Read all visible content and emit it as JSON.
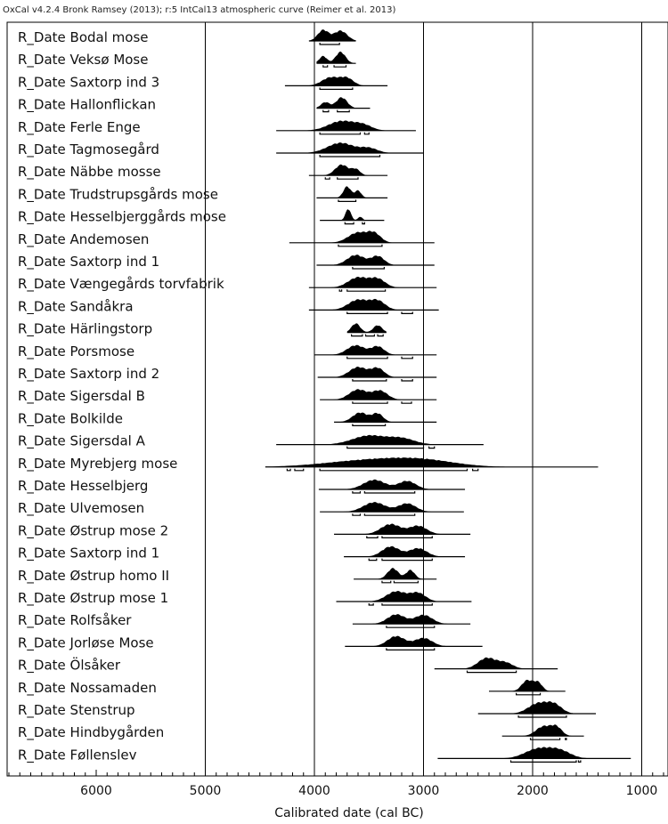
{
  "header": "OxCal v4.2.4 Bronk Ramsey (2013); r:5 IntCal13 atmospheric curve (Reimer et al. 2013)",
  "chart_data": {
    "type": "ridgeline",
    "xlabel": "Calibrated date (cal BC)",
    "xlim": [
      6800,
      770
    ],
    "x_reversed": true,
    "x_ticks": [
      6000,
      5000,
      4000,
      3000,
      2000,
      1000
    ],
    "vertical_gridlines": [
      5000,
      4000,
      3000,
      2000,
      1000
    ],
    "series": [
      {
        "label": "R_Date Bodal mose",
        "peaks": [
          [
            3920,
            0.9,
            50
          ],
          [
            3760,
            0.85,
            60
          ]
        ],
        "range": [
          4050,
          3620
        ],
        "hpd68": [
          [
            3950,
            3770
          ]
        ]
      },
      {
        "label": "R_Date Veksø Mose",
        "peaks": [
          [
            3920,
            0.6,
            35
          ],
          [
            3760,
            0.95,
            45
          ]
        ],
        "range": [
          3980,
          3620
        ],
        "hpd68": [
          [
            3920,
            3880
          ],
          [
            3820,
            3710
          ]
        ]
      },
      {
        "label": "R_Date Saxtorp ind 3",
        "peaks": [
          [
            3850,
            0.7,
            80
          ],
          [
            3700,
            0.6,
            60
          ]
        ],
        "range": [
          4270,
          3330
        ],
        "hpd68": [
          [
            3950,
            3650
          ]
        ]
      },
      {
        "label": "R_Date Hallonflickan",
        "peaks": [
          [
            3900,
            0.5,
            40
          ],
          [
            3750,
            0.9,
            50
          ]
        ],
        "range": [
          3980,
          3490
        ],
        "hpd68": [
          [
            3920,
            3870
          ],
          [
            3790,
            3680
          ]
        ]
      },
      {
        "label": "R_Date Ferle Enge",
        "peaks": [
          [
            3750,
            0.8,
            120
          ],
          [
            3550,
            0.4,
            80
          ]
        ],
        "range": [
          4350,
          3070
        ],
        "hpd68": [
          [
            3950,
            3580
          ],
          [
            3540,
            3500
          ]
        ]
      },
      {
        "label": "R_Date Tagmosegård",
        "peaks": [
          [
            3760,
            0.85,
            120
          ],
          [
            3500,
            0.4,
            80
          ]
        ],
        "range": [
          4350,
          3000
        ],
        "hpd68": [
          [
            3950,
            3400
          ]
        ]
      },
      {
        "label": "R_Date Näbbe mosse",
        "peaks": [
          [
            3750,
            0.9,
            60
          ],
          [
            3620,
            0.5,
            40
          ]
        ],
        "range": [
          4050,
          3330
        ],
        "hpd68": [
          [
            3900,
            3860
          ],
          [
            3790,
            3600
          ]
        ]
      },
      {
        "label": "R_Date Trudstrupsgårds mose",
        "peaks": [
          [
            3700,
            0.95,
            35
          ],
          [
            3600,
            0.6,
            30
          ]
        ],
        "range": [
          3980,
          3330
        ],
        "hpd68": [
          [
            3780,
            3620
          ]
        ]
      },
      {
        "label": "R_Date Hesselbjerggårds mose",
        "peaks": [
          [
            3690,
            0.95,
            25
          ],
          [
            3580,
            0.3,
            20
          ]
        ],
        "range": [
          3950,
          3360
        ],
        "hpd68": [
          [
            3720,
            3640
          ],
          [
            3560,
            3540
          ]
        ]
      },
      {
        "label": "R_Date Andemosen",
        "peaks": [
          [
            3600,
            0.85,
            90
          ],
          [
            3450,
            0.7,
            60
          ]
        ],
        "range": [
          4230,
          2900
        ],
        "hpd68": [
          [
            3780,
            3380
          ]
        ]
      },
      {
        "label": "R_Date Saxtorp ind 1",
        "peaks": [
          [
            3620,
            0.85,
            80
          ],
          [
            3420,
            0.75,
            60
          ]
        ],
        "range": [
          3980,
          2900
        ],
        "hpd68": [
          [
            3650,
            3360
          ]
        ]
      },
      {
        "label": "R_Date Vængegårds torvfabrik",
        "peaks": [
          [
            3600,
            0.85,
            90
          ],
          [
            3420,
            0.7,
            70
          ]
        ],
        "range": [
          4050,
          2880
        ],
        "hpd68": [
          [
            3770,
            3750
          ],
          [
            3700,
            3350
          ]
        ]
      },
      {
        "label": "R_Date Sandåkra",
        "peaks": [
          [
            3600,
            0.85,
            90
          ],
          [
            3420,
            0.75,
            70
          ]
        ],
        "range": [
          4050,
          2860
        ],
        "hpd68": [
          [
            3700,
            3330
          ],
          [
            3200,
            3100
          ]
        ]
      },
      {
        "label": "R_Date Härlingstorp",
        "peaks": [
          [
            3620,
            0.75,
            40
          ],
          [
            3420,
            0.6,
            40
          ]
        ],
        "range": [
          3700,
          3340
        ],
        "hpd68": [
          [
            3660,
            3560
          ],
          [
            3530,
            3450
          ],
          [
            3420,
            3370
          ]
        ]
      },
      {
        "label": "R_Date Porsmose",
        "peaks": [
          [
            3620,
            0.8,
            80
          ],
          [
            3420,
            0.7,
            60
          ]
        ],
        "range": [
          4000,
          2880
        ],
        "hpd68": [
          [
            3700,
            3330
          ],
          [
            3200,
            3100
          ]
        ]
      },
      {
        "label": "R_Date Saxtorp ind 2",
        "peaks": [
          [
            3600,
            0.85,
            80
          ],
          [
            3420,
            0.75,
            60
          ]
        ],
        "range": [
          3970,
          2880
        ],
        "hpd68": [
          [
            3650,
            3340
          ],
          [
            3200,
            3100
          ]
        ]
      },
      {
        "label": "R_Date Sigersdal B",
        "peaks": [
          [
            3600,
            0.85,
            80
          ],
          [
            3400,
            0.75,
            70
          ]
        ],
        "range": [
          3950,
          2880
        ],
        "hpd68": [
          [
            3650,
            3330
          ],
          [
            3200,
            3110
          ]
        ]
      },
      {
        "label": "R_Date Bolkilde",
        "peaks": [
          [
            3580,
            0.8,
            70
          ],
          [
            3420,
            0.7,
            50
          ]
        ],
        "range": [
          3820,
          2880
        ],
        "hpd68": [
          [
            3650,
            3350
          ]
        ]
      },
      {
        "label": "R_Date Sigersdal A",
        "peaks": [
          [
            3500,
            0.75,
            150
          ],
          [
            3200,
            0.5,
            120
          ]
        ],
        "range": [
          4350,
          2450
        ],
        "hpd68": [
          [
            3700,
            3000
          ],
          [
            2950,
            2900
          ]
        ]
      },
      {
        "label": "R_Date Myrebjerg mose",
        "peaks": [
          [
            3500,
            0.55,
            400
          ],
          [
            3000,
            0.45,
            300
          ]
        ],
        "range": [
          4450,
          1400
        ],
        "hpd68": [
          [
            4250,
            4220
          ],
          [
            4180,
            4100
          ],
          [
            3950,
            2600
          ],
          [
            2550,
            2500
          ]
        ]
      },
      {
        "label": "R_Date Hesselbjerg",
        "peaks": [
          [
            3450,
            0.8,
            100
          ],
          [
            3150,
            0.7,
            80
          ]
        ],
        "range": [
          3960,
          2620
        ],
        "hpd68": [
          [
            3650,
            3580
          ],
          [
            3540,
            3080
          ]
        ]
      },
      {
        "label": "R_Date Ulvemosen",
        "peaks": [
          [
            3450,
            0.8,
            100
          ],
          [
            3150,
            0.7,
            80
          ]
        ],
        "range": [
          3950,
          2630
        ],
        "hpd68": [
          [
            3650,
            3580
          ],
          [
            3540,
            3080
          ]
        ]
      },
      {
        "label": "R_Date Østrup mose 2",
        "peaks": [
          [
            3300,
            0.85,
            90
          ],
          [
            3050,
            0.7,
            80
          ]
        ],
        "range": [
          3820,
          2570
        ],
        "hpd68": [
          [
            3520,
            3420
          ],
          [
            3380,
            2920
          ]
        ]
      },
      {
        "label": "R_Date Saxtorp ind 1",
        "peaks": [
          [
            3300,
            0.85,
            80
          ],
          [
            3050,
            0.7,
            80
          ]
        ],
        "range": [
          3730,
          2620
        ],
        "hpd68": [
          [
            3500,
            3430
          ],
          [
            3380,
            2920
          ]
        ]
      },
      {
        "label": "R_Date Østrup homo II",
        "peaks": [
          [
            3280,
            0.9,
            50
          ],
          [
            3120,
            0.75,
            40
          ]
        ],
        "range": [
          3640,
          2880
        ],
        "hpd68": [
          [
            3380,
            3300
          ],
          [
            3270,
            3050
          ]
        ]
      },
      {
        "label": "R_Date Østrup mose 1",
        "peaks": [
          [
            3250,
            0.85,
            90
          ],
          [
            3050,
            0.7,
            70
          ]
        ],
        "range": [
          3800,
          2560
        ],
        "hpd68": [
          [
            3500,
            3460
          ],
          [
            3380,
            2920
          ]
        ]
      },
      {
        "label": "R_Date Rolfsåker",
        "peaks": [
          [
            3250,
            0.8,
            80
          ],
          [
            3000,
            0.75,
            80
          ]
        ],
        "range": [
          3650,
          2570
        ],
        "hpd68": [
          [
            3340,
            2900
          ]
        ]
      },
      {
        "label": "R_Date Jorløse Mose",
        "peaks": [
          [
            3250,
            0.85,
            80
          ],
          [
            3000,
            0.7,
            80
          ]
        ],
        "range": [
          3720,
          2460
        ],
        "hpd68": [
          [
            3340,
            2900
          ]
        ]
      },
      {
        "label": "R_Date Ölsåker",
        "peaks": [
          [
            2420,
            0.9,
            80
          ],
          [
            2250,
            0.5,
            70
          ]
        ],
        "range": [
          2900,
          1770
        ],
        "hpd68": [
          [
            2600,
            2150
          ]
        ]
      },
      {
        "label": "R_Date Nossamaden",
        "peaks": [
          [
            2050,
            0.9,
            50
          ],
          [
            1950,
            0.7,
            40
          ]
        ],
        "range": [
          2400,
          1700
        ],
        "hpd68": [
          [
            2150,
            1930
          ]
        ]
      },
      {
        "label": "R_Date Stenstrup",
        "peaks": [
          [
            1950,
            0.85,
            90
          ],
          [
            1800,
            0.7,
            70
          ]
        ],
        "range": [
          2500,
          1420
        ],
        "hpd68": [
          [
            2130,
            1690
          ]
        ]
      },
      {
        "label": "R_Date Hindbygården",
        "peaks": [
          [
            1900,
            0.8,
            70
          ],
          [
            1780,
            0.7,
            50
          ]
        ],
        "range": [
          2280,
          1530
        ],
        "hpd68": [
          [
            2020,
            1750
          ],
          [
            1700,
            1690
          ]
        ]
      },
      {
        "label": "R_Date Føllenslev",
        "peaks": [
          [
            1950,
            0.8,
            120
          ],
          [
            1750,
            0.6,
            100
          ]
        ],
        "range": [
          2870,
          1100
        ],
        "hpd68": [
          [
            2200,
            1600
          ],
          [
            1580,
            1560
          ]
        ]
      }
    ]
  }
}
